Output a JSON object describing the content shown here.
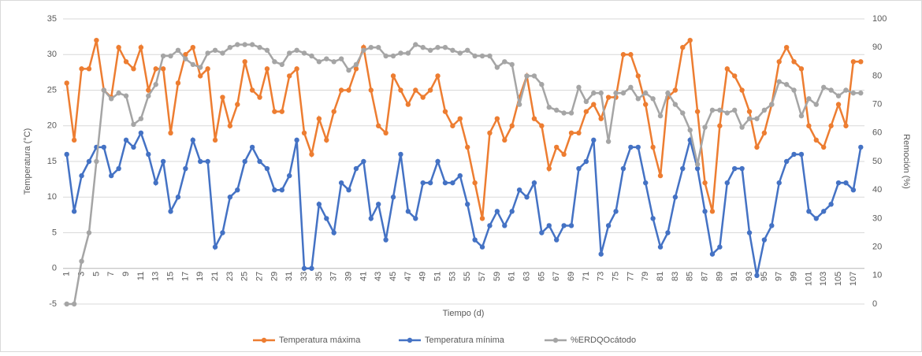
{
  "chart_data": {
    "type": "line",
    "x_label": "Tiempo (d)",
    "y_label": "Temperatura (°C)",
    "y2_label": "Remoción (%)",
    "categories": [
      1,
      null,
      3,
      null,
      5,
      null,
      7,
      null,
      9,
      null,
      11,
      null,
      13,
      null,
      15,
      null,
      17,
      null,
      19,
      null,
      21,
      null,
      23,
      null,
      25,
      null,
      27,
      null,
      29,
      null,
      31,
      null,
      33,
      null,
      35,
      null,
      37,
      null,
      39,
      null,
      41,
      null,
      43,
      null,
      45,
      null,
      47,
      null,
      49,
      null,
      51,
      null,
      53,
      null,
      55,
      null,
      57,
      null,
      59,
      null,
      61,
      null,
      63,
      null,
      65,
      null,
      67,
      null,
      69,
      null,
      71,
      null,
      73,
      null,
      75,
      null,
      77,
      null,
      79,
      null,
      81,
      null,
      83,
      null,
      85,
      null,
      87,
      null,
      89,
      null,
      91,
      null,
      93,
      null,
      95,
      null,
      97,
      null,
      99,
      null,
      101,
      null,
      103,
      null,
      105,
      null,
      107,
      null
    ],
    "series": [
      {
        "name": "Temperatura máxima",
        "color": "#ed7d31",
        "values": [
          26,
          18,
          28,
          28,
          32,
          25,
          24,
          31,
          29,
          28,
          31,
          25,
          28,
          28,
          19,
          26,
          30,
          31,
          27,
          28,
          18,
          24,
          20,
          23,
          29,
          25,
          24,
          28,
          22,
          22,
          27,
          28,
          19,
          16,
          21,
          18,
          22,
          25,
          25,
          28,
          31,
          25,
          20,
          19,
          27,
          25,
          23,
          25,
          24,
          25,
          27,
          22,
          20,
          21,
          17,
          12,
          7,
          19,
          21,
          18,
          20,
          24,
          27,
          21,
          20,
          14,
          17,
          16,
          19,
          19,
          22,
          23,
          21,
          24,
          24,
          30,
          30,
          27,
          23,
          17,
          13,
          24,
          25,
          31,
          32,
          22,
          12,
          8,
          20,
          28,
          27,
          25,
          22,
          17,
          19,
          23,
          29,
          31,
          29,
          28,
          20,
          18,
          17,
          20,
          23,
          20,
          29,
          29
        ]
      },
      {
        "name": "Temperatura mínima",
        "color": "#4472c4",
        "values": [
          16,
          8,
          13,
          15,
          17,
          17,
          13,
          14,
          18,
          17,
          19,
          16,
          12,
          15,
          8,
          10,
          14,
          18,
          15,
          15,
          3,
          5,
          10,
          11,
          15,
          17,
          15,
          14,
          11,
          11,
          13,
          18,
          0,
          0,
          9,
          7,
          5,
          12,
          11,
          14,
          15,
          7,
          9,
          4,
          10,
          16,
          8,
          7,
          12,
          12,
          15,
          12,
          12,
          13,
          9,
          4,
          3,
          6,
          8,
          6,
          8,
          11,
          10,
          12,
          5,
          6,
          4,
          6,
          6,
          14,
          15,
          18,
          2,
          6,
          8,
          14,
          17,
          17,
          12,
          7,
          3,
          5,
          10,
          14,
          18,
          14,
          8,
          2,
          3,
          12,
          14,
          14,
          5,
          -1,
          4,
          6,
          12,
          15,
          16,
          16,
          8,
          7,
          8,
          9,
          12,
          12,
          11,
          17
        ]
      },
      {
        "name": "%ERDQOcátodo",
        "color": "#a5a5a5",
        "axis": "y2",
        "values": [
          0,
          0,
          15,
          25,
          50,
          75,
          72,
          74,
          73,
          63,
          65,
          73,
          77,
          87,
          87,
          89,
          86,
          84,
          83,
          88,
          89,
          88,
          90,
          91,
          91,
          91,
          90,
          89,
          85,
          84,
          88,
          89,
          88,
          87,
          85,
          86,
          85,
          86,
          82,
          84,
          89,
          90,
          90,
          87,
          87,
          88,
          88,
          91,
          90,
          89,
          90,
          90,
          89,
          88,
          89,
          87,
          87,
          87,
          83,
          85,
          84,
          70,
          80,
          80,
          77,
          69,
          68,
          67,
          67,
          76,
          71,
          74,
          74,
          57,
          74,
          74,
          76,
          72,
          74,
          72,
          66,
          74,
          70,
          67,
          61,
          49,
          62,
          68,
          68,
          67,
          68,
          62,
          65,
          65,
          68,
          70,
          78,
          77,
          75,
          66,
          72,
          70,
          76,
          75,
          73,
          75,
          74,
          74
        ]
      }
    ],
    "ylim": [
      -5,
      35
    ],
    "yticks": [
      -5,
      0,
      5,
      10,
      15,
      20,
      25,
      30,
      35
    ],
    "y2lim": [
      0,
      100
    ],
    "y2ticks": [
      0,
      10,
      20,
      30,
      40,
      50,
      60,
      70,
      80,
      90,
      100
    ],
    "grid": true,
    "legend": "bottom"
  }
}
